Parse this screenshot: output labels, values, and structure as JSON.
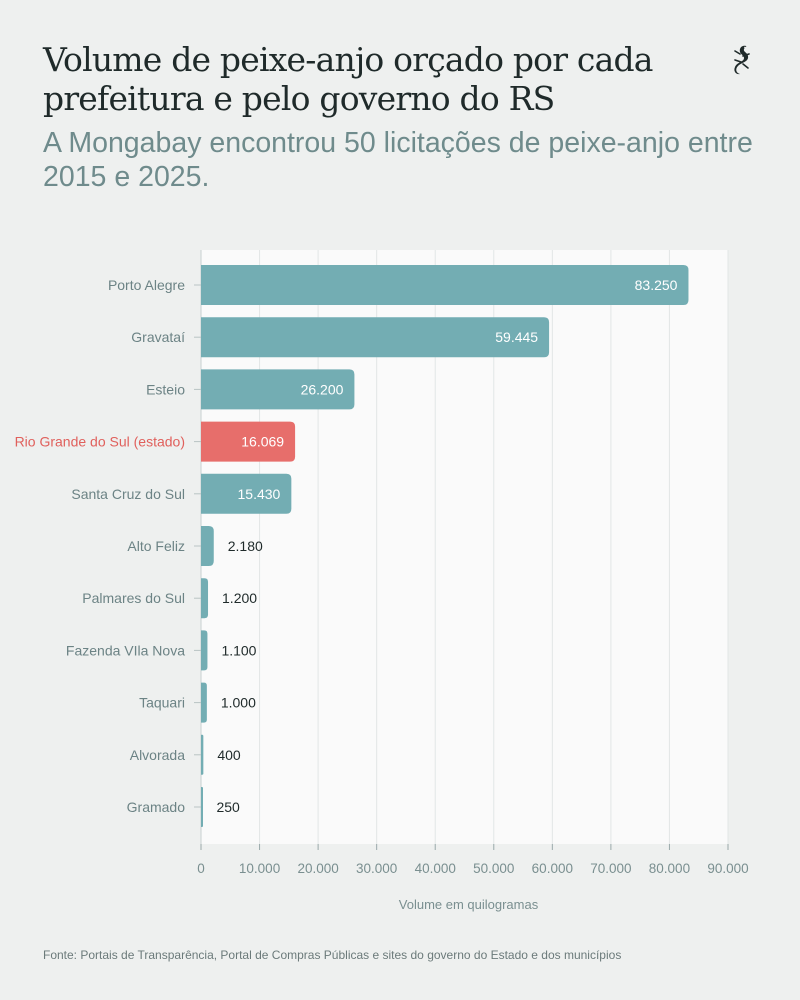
{
  "header": {
    "title": "Volume de peixe-anjo orçado por cada prefeitura e pelo governo do RS",
    "subtitle": "A Mongabay encontrou 50 licitações de peixe-anjo entre 2015 e 2025."
  },
  "logo": {
    "icon": "lizard-icon"
  },
  "chart_data": {
    "type": "bar",
    "orientation": "horizontal",
    "categories": [
      "Porto Alegre",
      "Gravataí",
      "Esteio",
      "Rio Grande do Sul (estado)",
      "Santa Cruz do Sul",
      "Alto Feliz",
      "Palmares do Sul",
      "Fazenda VIla Nova",
      "Taquari",
      "Alvorada",
      "Gramado"
    ],
    "values": [
      83250,
      59445,
      26200,
      16069,
      15430,
      2180,
      1200,
      1100,
      1000,
      400,
      250
    ],
    "value_labels": [
      "83.250",
      "59.445",
      "26.200",
      "16.069",
      "15.430",
      "2.180",
      "1.200",
      "1.100",
      "1.000",
      "400",
      "250"
    ],
    "highlight": "Rio Grande do Sul (estado)",
    "xlabel": "Volume em quilogramas",
    "ylabel": "",
    "xlim": [
      0,
      90000
    ],
    "xticks": [
      0,
      10000,
      20000,
      30000,
      40000,
      50000,
      60000,
      70000,
      80000,
      90000
    ],
    "xtick_labels": [
      "0",
      "10.000",
      "20.000",
      "30.000",
      "40.000",
      "50.000",
      "60.000",
      "70.000",
      "80.000",
      "90.000"
    ],
    "grid": true,
    "colors": {
      "bar": "#73adb3",
      "highlight": "#e76e6b",
      "highlight_text": "#e0605c",
      "category_text": "#6c8385"
    }
  },
  "footer": {
    "source": "Fonte: Portais de Transparência, Portal de Compras Públicas e sites do governo do Estado e dos municípios"
  }
}
